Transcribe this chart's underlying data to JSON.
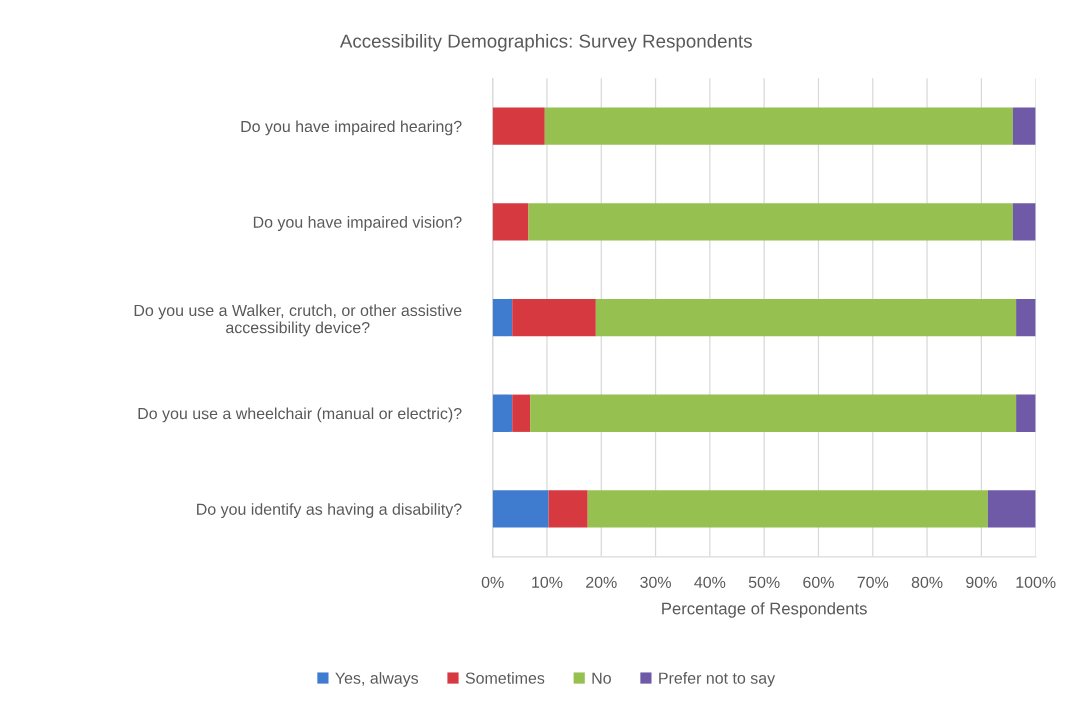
{
  "chart_data": {
    "type": "bar",
    "orientation": "horizontal",
    "stacked": true,
    "title": "Accessibility Demographics: Survey Respondents",
    "xlabel": "Percentage of Respondents",
    "categories": [
      "Do you have impaired hearing?",
      "Do you have impaired vision?",
      "Do you use a Walker, crutch, or other assistive\naccessibility device?",
      "Do you use a wheelchair (manual or electric)?",
      "Do you identify as having a disability?"
    ],
    "series": [
      {
        "name": "Yes, always",
        "color": "#3f7cd0",
        "values": [
          0,
          0,
          3.6,
          3.6,
          10.3
        ]
      },
      {
        "name": "Sometimes",
        "color": "#d6393f",
        "values": [
          9.6,
          6.6,
          15.4,
          3.3,
          7.2
        ]
      },
      {
        "name": "No",
        "color": "#96c050",
        "values": [
          86.2,
          89.2,
          77.4,
          89.5,
          73.7
        ]
      },
      {
        "name": "Prefer not to say",
        "color": "#6f5aa7",
        "values": [
          4.2,
          4.2,
          3.6,
          3.6,
          8.8
        ]
      }
    ],
    "xlim": [
      0,
      100
    ],
    "xticks": [
      {
        "value": 0,
        "label": "0%"
      },
      {
        "value": 10,
        "label": "10%"
      },
      {
        "value": 20,
        "label": "20%"
      },
      {
        "value": 30,
        "label": "30%"
      },
      {
        "value": 40,
        "label": "40%"
      },
      {
        "value": 50,
        "label": "50%"
      },
      {
        "value": 60,
        "label": "60%"
      },
      {
        "value": 70,
        "label": "70%"
      },
      {
        "value": 80,
        "label": "80%"
      },
      {
        "value": 90,
        "label": "90%"
      },
      {
        "value": 100,
        "label": "100%"
      }
    ],
    "grid": "x",
    "legend": "bottom"
  }
}
